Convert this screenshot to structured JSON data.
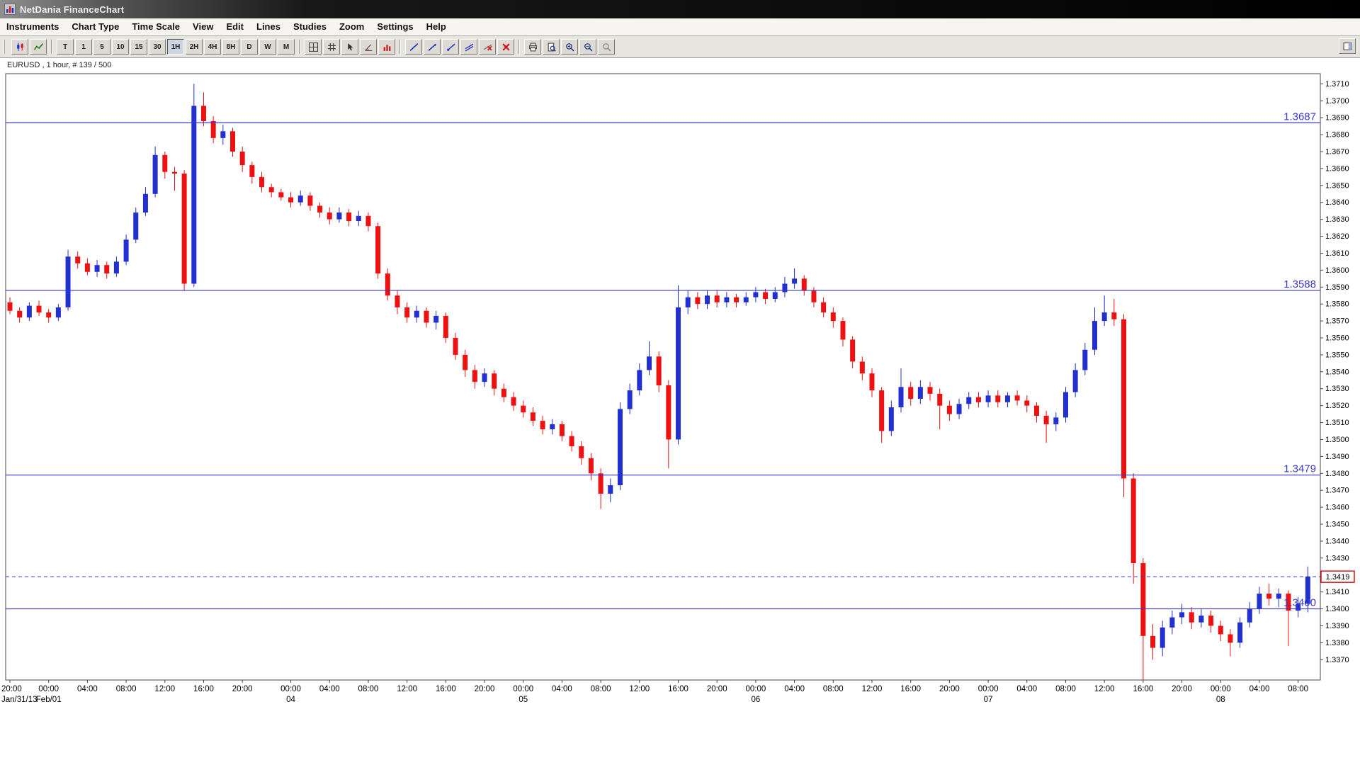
{
  "window": {
    "title": "NetDania FinanceChart"
  },
  "menu": {
    "items": [
      {
        "name": "menu-instruments",
        "label": "Instruments"
      },
      {
        "name": "menu-chart-type",
        "label": "Chart Type"
      },
      {
        "name": "menu-time-scale",
        "label": "Time Scale"
      },
      {
        "name": "menu-view",
        "label": "View"
      },
      {
        "name": "menu-edit",
        "label": "Edit"
      },
      {
        "name": "menu-lines",
        "label": "Lines"
      },
      {
        "name": "menu-studies",
        "label": "Studies"
      },
      {
        "name": "menu-zoom",
        "label": "Zoom"
      },
      {
        "name": "menu-settings",
        "label": "Settings"
      },
      {
        "name": "menu-help",
        "label": "Help"
      }
    ]
  },
  "toolbar": {
    "groups": [
      {
        "items": [
          {
            "name": "candlestick-chart-button",
            "icon": "candlestick-chart-icon"
          },
          {
            "name": "line-chart-button",
            "icon": "line-chart-icon"
          }
        ]
      },
      {
        "items": [
          {
            "name": "timeframe-tick-button",
            "label": "T"
          },
          {
            "name": "timeframe-1m-button",
            "label": "1"
          },
          {
            "name": "timeframe-5m-button",
            "label": "5"
          },
          {
            "name": "timeframe-10m-button",
            "label": "10"
          },
          {
            "name": "timeframe-15m-button",
            "label": "15"
          },
          {
            "name": "timeframe-30m-button",
            "label": "30"
          },
          {
            "name": "timeframe-1h-button",
            "label": "1H",
            "selected": true
          },
          {
            "name": "timeframe-2h-button",
            "label": "2H"
          },
          {
            "name": "timeframe-4h-button",
            "label": "4H"
          },
          {
            "name": "timeframe-8h-button",
            "label": "8H"
          },
          {
            "name": "timeframe-1d-button",
            "label": "D"
          },
          {
            "name": "timeframe-1w-button",
            "label": "W"
          },
          {
            "name": "timeframe-1mo-button",
            "label": "M"
          }
        ]
      },
      {
        "items": [
          {
            "name": "grid-layout-button",
            "icon": "grid-layout-icon"
          },
          {
            "name": "crosshair-grid-button",
            "icon": "hash-grid-icon"
          },
          {
            "name": "cursor-tool-button",
            "icon": "cursor-arrow-icon"
          },
          {
            "name": "angle-tool-button",
            "icon": "angle-tool-icon"
          },
          {
            "name": "volume-study-button",
            "icon": "volume-histogram-icon"
          }
        ]
      },
      {
        "items": [
          {
            "name": "trendline-button",
            "icon": "trendline-icon"
          },
          {
            "name": "trendline-arrow-button",
            "icon": "trendline-arrow-icon"
          },
          {
            "name": "ray-line-button",
            "icon": "ray-line-icon"
          },
          {
            "name": "channel-button",
            "icon": "channel-line-icon"
          },
          {
            "name": "delete-line-button",
            "icon": "delete-line-icon"
          },
          {
            "name": "delete-all-lines-button",
            "icon": "delete-all-lines-icon"
          }
        ]
      },
      {
        "items": [
          {
            "name": "print-button",
            "icon": "print-icon"
          },
          {
            "name": "print-preview-button",
            "icon": "print-preview-icon"
          },
          {
            "name": "zoom-in-button",
            "icon": "zoom-in-icon"
          },
          {
            "name": "zoom-out-button",
            "icon": "zoom-out-icon"
          },
          {
            "name": "zoom-off-button",
            "icon": "zoom-off-icon"
          }
        ]
      }
    ],
    "right": [
      {
        "name": "side-panel-toggle-button",
        "icon": "side-panel-icon"
      }
    ]
  },
  "chart": {
    "symbol_label": "EURUSD , 1 hour, # 139 / 500"
  },
  "colors": {
    "up": "#2230d0",
    "down": "#ee1111",
    "level_line": "#3a3ac8",
    "level_label": "#3a3ac8",
    "price_box_border": "#dd0000",
    "axis_text": "#000000"
  },
  "chart_data": {
    "type": "candlestick",
    "instrument": "EURUSD",
    "interval": "1 hour",
    "bars_info": "# 139 / 500",
    "y_axis": {
      "min": 1.337,
      "max": 1.371,
      "step": 0.001,
      "view_min": 1.3358,
      "view_max": 1.3716
    },
    "horizontal_lines": [
      {
        "value": 1.3687,
        "label": "1.3687",
        "style": "solid"
      },
      {
        "value": 1.3588,
        "label": "1.3588",
        "style": "solid"
      },
      {
        "value": 1.3479,
        "label": "1.3479",
        "style": "solid"
      },
      {
        "value": 1.34,
        "label": "1.3400",
        "style": "solid"
      }
    ],
    "current_price": {
      "value": 1.3419,
      "label": "1.3419",
      "style": "dashed"
    },
    "x_axis": {
      "time_labels": [
        {
          "i": 0,
          "t": "20:00"
        },
        {
          "i": 4,
          "t": "00:00"
        },
        {
          "i": 8,
          "t": "04:00"
        },
        {
          "i": 12,
          "t": "08:00"
        },
        {
          "i": 16,
          "t": "12:00"
        },
        {
          "i": 20,
          "t": "16:00"
        },
        {
          "i": 24,
          "t": "20:00"
        },
        {
          "i": 29,
          "t": "00:00"
        },
        {
          "i": 33,
          "t": "04:00"
        },
        {
          "i": 37,
          "t": "08:00"
        },
        {
          "i": 41,
          "t": "12:00"
        },
        {
          "i": 45,
          "t": "16:00"
        },
        {
          "i": 49,
          "t": "20:00"
        },
        {
          "i": 53,
          "t": "00:00"
        },
        {
          "i": 57,
          "t": "04:00"
        },
        {
          "i": 61,
          "t": "08:00"
        },
        {
          "i": 65,
          "t": "12:00"
        },
        {
          "i": 69,
          "t": "16:00"
        },
        {
          "i": 73,
          "t": "20:00"
        },
        {
          "i": 77,
          "t": "00:00"
        },
        {
          "i": 81,
          "t": "04:00"
        },
        {
          "i": 85,
          "t": "08:00"
        },
        {
          "i": 89,
          "t": "12:00"
        },
        {
          "i": 93,
          "t": "16:00"
        },
        {
          "i": 97,
          "t": "20:00"
        },
        {
          "i": 101,
          "t": "00:00"
        },
        {
          "i": 105,
          "t": "04:00"
        },
        {
          "i": 109,
          "t": "08:00"
        },
        {
          "i": 113,
          "t": "12:00"
        },
        {
          "i": 117,
          "t": "16:00"
        },
        {
          "i": 121,
          "t": "20:00"
        },
        {
          "i": 125,
          "t": "00:00"
        },
        {
          "i": 129,
          "t": "04:00"
        },
        {
          "i": 133,
          "t": "08:00"
        }
      ],
      "date_labels": [
        {
          "i": 0,
          "t": "Jan/31/13"
        },
        {
          "i": 4,
          "t": "Feb/01"
        },
        {
          "i": 29,
          "t": "04"
        },
        {
          "i": 53,
          "t": "05"
        },
        {
          "i": 77,
          "t": "06"
        },
        {
          "i": 101,
          "t": "07"
        },
        {
          "i": 125,
          "t": "08"
        }
      ]
    },
    "candles_ohlc": [
      [
        1.3581,
        1.3584,
        1.3574,
        1.3576
      ],
      [
        1.3576,
        1.3578,
        1.3569,
        1.3572
      ],
      [
        1.3572,
        1.3581,
        1.357,
        1.3579
      ],
      [
        1.3579,
        1.3582,
        1.3573,
        1.3575
      ],
      [
        1.3575,
        1.3577,
        1.3569,
        1.3572
      ],
      [
        1.3572,
        1.358,
        1.357,
        1.3578
      ],
      [
        1.3578,
        1.3612,
        1.3576,
        1.3608
      ],
      [
        1.3608,
        1.3611,
        1.3601,
        1.3604
      ],
      [
        1.3604,
        1.3607,
        1.3597,
        1.3599
      ],
      [
        1.3599,
        1.3606,
        1.3596,
        1.3603
      ],
      [
        1.3603,
        1.3605,
        1.3595,
        1.3598
      ],
      [
        1.3598,
        1.3608,
        1.3596,
        1.3605
      ],
      [
        1.3605,
        1.3621,
        1.3603,
        1.3618
      ],
      [
        1.3618,
        1.3637,
        1.3616,
        1.3634
      ],
      [
        1.3634,
        1.3649,
        1.3632,
        1.3645
      ],
      [
        1.3645,
        1.3673,
        1.3643,
        1.3668
      ],
      [
        1.3668,
        1.367,
        1.3654,
        1.3658
      ],
      [
        1.3658,
        1.3661,
        1.3647,
        1.3657
      ],
      [
        1.3657,
        1.3659,
        1.3588,
        1.3592
      ],
      [
        1.3592,
        1.371,
        1.359,
        1.3697
      ],
      [
        1.3697,
        1.3705,
        1.3685,
        1.3688
      ],
      [
        1.3688,
        1.3691,
        1.3675,
        1.3678
      ],
      [
        1.3678,
        1.3686,
        1.3674,
        1.3682
      ],
      [
        1.3682,
        1.3684,
        1.3667,
        1.367
      ],
      [
        1.367,
        1.3673,
        1.3658,
        1.3662
      ],
      [
        1.3662,
        1.3664,
        1.3651,
        1.3655
      ],
      [
        1.3655,
        1.3658,
        1.3646,
        1.3649
      ],
      [
        1.3649,
        1.3651,
        1.3643,
        1.3646
      ],
      [
        1.3646,
        1.3648,
        1.3641,
        1.3643
      ],
      [
        1.3643,
        1.3646,
        1.3637,
        1.364
      ],
      [
        1.364,
        1.3647,
        1.3638,
        1.3644
      ],
      [
        1.3644,
        1.3646,
        1.3635,
        1.3638
      ],
      [
        1.3638,
        1.364,
        1.3631,
        1.3634
      ],
      [
        1.3634,
        1.3637,
        1.3627,
        1.363
      ],
      [
        1.363,
        1.3637,
        1.3628,
        1.3634
      ],
      [
        1.3634,
        1.3636,
        1.3626,
        1.3629
      ],
      [
        1.3629,
        1.3635,
        1.3626,
        1.3632
      ],
      [
        1.3632,
        1.3634,
        1.3623,
        1.3626
      ],
      [
        1.3626,
        1.3628,
        1.3595,
        1.3598
      ],
      [
        1.3598,
        1.3601,
        1.3582,
        1.3585
      ],
      [
        1.3585,
        1.3588,
        1.3574,
        1.3578
      ],
      [
        1.3578,
        1.3581,
        1.3569,
        1.3572
      ],
      [
        1.3572,
        1.3579,
        1.3569,
        1.3576
      ],
      [
        1.3576,
        1.3578,
        1.3566,
        1.3569
      ],
      [
        1.3569,
        1.3576,
        1.3565,
        1.3573
      ],
      [
        1.3573,
        1.3575,
        1.3557,
        1.356
      ],
      [
        1.356,
        1.3563,
        1.3547,
        1.355
      ],
      [
        1.355,
        1.3553,
        1.3537,
        1.3541
      ],
      [
        1.3541,
        1.3544,
        1.353,
        1.3534
      ],
      [
        1.3534,
        1.3542,
        1.3531,
        1.3539
      ],
      [
        1.3539,
        1.3541,
        1.3526,
        1.353
      ],
      [
        1.353,
        1.3533,
        1.3522,
        1.3525
      ],
      [
        1.3525,
        1.3528,
        1.3517,
        1.352
      ],
      [
        1.352,
        1.3523,
        1.3513,
        1.3516
      ],
      [
        1.3516,
        1.3519,
        1.3508,
        1.3511
      ],
      [
        1.3511,
        1.3514,
        1.3503,
        1.3506
      ],
      [
        1.3506,
        1.3512,
        1.3503,
        1.3509
      ],
      [
        1.3509,
        1.3511,
        1.3499,
        1.3502
      ],
      [
        1.3502,
        1.3505,
        1.3493,
        1.3496
      ],
      [
        1.3496,
        1.3499,
        1.3485,
        1.3489
      ],
      [
        1.3489,
        1.3492,
        1.3476,
        1.348
      ],
      [
        1.348,
        1.3483,
        1.3459,
        1.3468
      ],
      [
        1.3468,
        1.3477,
        1.3463,
        1.3473
      ],
      [
        1.3473,
        1.3522,
        1.347,
        1.3518
      ],
      [
        1.3518,
        1.3533,
        1.3515,
        1.3529
      ],
      [
        1.3529,
        1.3545,
        1.3526,
        1.3541
      ],
      [
        1.3541,
        1.3558,
        1.3538,
        1.3549
      ],
      [
        1.3549,
        1.3552,
        1.3528,
        1.3532
      ],
      [
        1.3532,
        1.3535,
        1.3483,
        1.35
      ],
      [
        1.35,
        1.3591,
        1.3497,
        1.3578
      ],
      [
        1.3578,
        1.3588,
        1.3574,
        1.3584
      ],
      [
        1.3584,
        1.3587,
        1.3577,
        1.358
      ],
      [
        1.358,
        1.3588,
        1.3577,
        1.3585
      ],
      [
        1.3585,
        1.3588,
        1.3578,
        1.3581
      ],
      [
        1.3581,
        1.3587,
        1.3578,
        1.3584
      ],
      [
        1.3584,
        1.3586,
        1.3578,
        1.3581
      ],
      [
        1.3581,
        1.3587,
        1.3579,
        1.3584
      ],
      [
        1.3584,
        1.359,
        1.3581,
        1.3587
      ],
      [
        1.3587,
        1.3589,
        1.358,
        1.3583
      ],
      [
        1.3583,
        1.359,
        1.3581,
        1.3587
      ],
      [
        1.3587,
        1.3596,
        1.3584,
        1.3592
      ],
      [
        1.3592,
        1.3601,
        1.3589,
        1.3595
      ],
      [
        1.3595,
        1.3597,
        1.3585,
        1.3588
      ],
      [
        1.3588,
        1.359,
        1.3578,
        1.3581
      ],
      [
        1.3581,
        1.3584,
        1.3572,
        1.3575
      ],
      [
        1.3575,
        1.3578,
        1.3566,
        1.357
      ],
      [
        1.357,
        1.3572,
        1.3555,
        1.3559
      ],
      [
        1.3559,
        1.3561,
        1.3542,
        1.3546
      ],
      [
        1.3546,
        1.3549,
        1.3535,
        1.3539
      ],
      [
        1.3539,
        1.3542,
        1.3525,
        1.3529
      ],
      [
        1.3529,
        1.3531,
        1.3498,
        1.3505
      ],
      [
        1.3505,
        1.3523,
        1.3502,
        1.3519
      ],
      [
        1.3519,
        1.3542,
        1.3516,
        1.3531
      ],
      [
        1.3531,
        1.3534,
        1.352,
        1.3524
      ],
      [
        1.3524,
        1.3535,
        1.3521,
        1.3531
      ],
      [
        1.3531,
        1.3534,
        1.3523,
        1.3527
      ],
      [
        1.3527,
        1.353,
        1.3506,
        1.352
      ],
      [
        1.352,
        1.3523,
        1.3511,
        1.3515
      ],
      [
        1.3515,
        1.3524,
        1.3512,
        1.3521
      ],
      [
        1.3521,
        1.3528,
        1.3518,
        1.3525
      ],
      [
        1.3525,
        1.3528,
        1.3519,
        1.3522
      ],
      [
        1.3522,
        1.3529,
        1.3519,
        1.3526
      ],
      [
        1.3526,
        1.3529,
        1.3519,
        1.3522
      ],
      [
        1.3522,
        1.3528,
        1.3519,
        1.3526
      ],
      [
        1.3526,
        1.3529,
        1.352,
        1.3523
      ],
      [
        1.3523,
        1.3526,
        1.3516,
        1.352
      ],
      [
        1.352,
        1.3522,
        1.351,
        1.3514
      ],
      [
        1.3514,
        1.3517,
        1.3498,
        1.3509
      ],
      [
        1.3509,
        1.3516,
        1.3505,
        1.3513
      ],
      [
        1.3513,
        1.3531,
        1.351,
        1.3528
      ],
      [
        1.3528,
        1.3545,
        1.3525,
        1.3541
      ],
      [
        1.3541,
        1.3557,
        1.3538,
        1.3553
      ],
      [
        1.3553,
        1.3578,
        1.355,
        1.357
      ],
      [
        1.357,
        1.3585,
        1.3567,
        1.3575
      ],
      [
        1.3575,
        1.3583,
        1.3567,
        1.3571
      ],
      [
        1.3571,
        1.3574,
        1.3466,
        1.3477
      ],
      [
        1.3477,
        1.348,
        1.3415,
        1.3427
      ],
      [
        1.3427,
        1.343,
        1.3358,
        1.3384
      ],
      [
        1.3384,
        1.3391,
        1.337,
        1.3377
      ],
      [
        1.3377,
        1.3393,
        1.3372,
        1.3389
      ],
      [
        1.3389,
        1.3399,
        1.3385,
        1.3395
      ],
      [
        1.3395,
        1.3403,
        1.3391,
        1.3398
      ],
      [
        1.3398,
        1.3401,
        1.3388,
        1.3392
      ],
      [
        1.3392,
        1.34,
        1.3389,
        1.3396
      ],
      [
        1.3396,
        1.3399,
        1.3386,
        1.339
      ],
      [
        1.339,
        1.3393,
        1.3381,
        1.3385
      ],
      [
        1.3385,
        1.3388,
        1.3372,
        1.338
      ],
      [
        1.338,
        1.3395,
        1.3377,
        1.3392
      ],
      [
        1.3392,
        1.3404,
        1.3389,
        1.34
      ],
      [
        1.34,
        1.3413,
        1.3397,
        1.3409
      ],
      [
        1.3409,
        1.3415,
        1.3402,
        1.3406
      ],
      [
        1.3406,
        1.3412,
        1.3401,
        1.3409
      ],
      [
        1.3409,
        1.3411,
        1.3378,
        1.3399
      ],
      [
        1.3399,
        1.3407,
        1.3395,
        1.3403
      ],
      [
        1.3403,
        1.3425,
        1.3398,
        1.3419
      ]
    ]
  }
}
